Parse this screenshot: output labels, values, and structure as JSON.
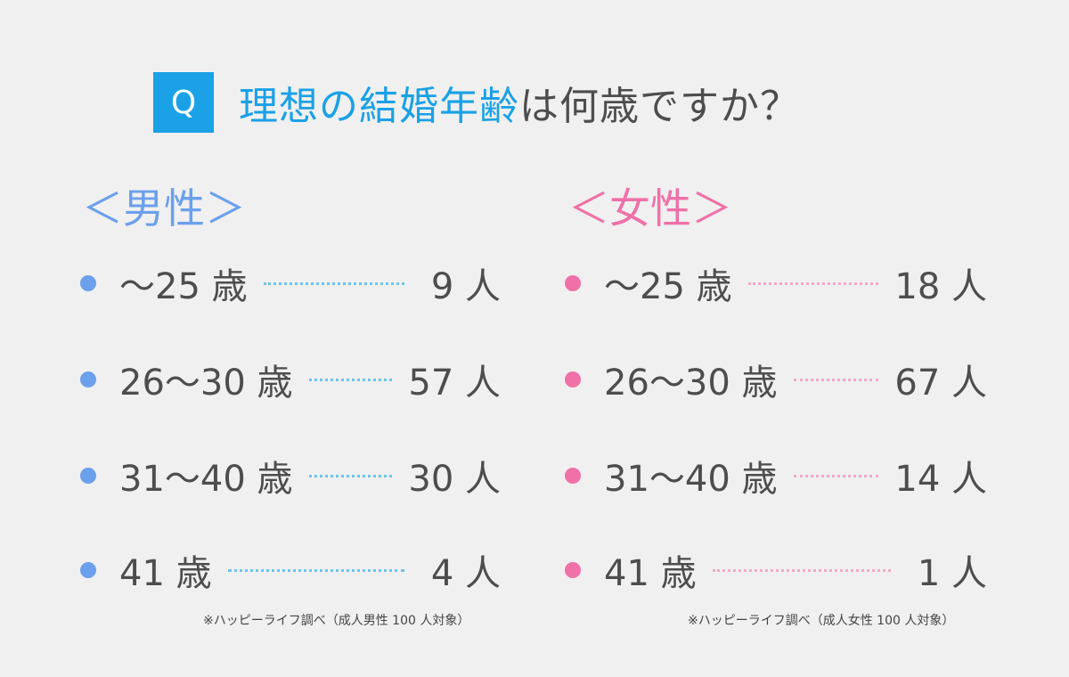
{
  "header": {
    "badge": "Q",
    "title_highlight": "理想の結婚年齢",
    "title_rest": "は何歳ですか？"
  },
  "male": {
    "heading": "＜男性＞",
    "rows": [
      {
        "label": "〜25 歳",
        "count": "9 人"
      },
      {
        "label": "26〜30 歳",
        "count": "57 人"
      },
      {
        "label": "31〜40 歳",
        "count": "30 人"
      },
      {
        "label": "41 歳",
        "count": "4 人"
      }
    ],
    "note": "※ハッピーライフ調べ（成人男性 100 人対象）"
  },
  "female": {
    "heading": "＜女性＞",
    "rows": [
      {
        "label": "〜25 歳",
        "count": "18 人"
      },
      {
        "label": "26〜30 歳",
        "count": "67 人"
      },
      {
        "label": "31〜40 歳",
        "count": "14 人"
      },
      {
        "label": "41 歳",
        "count": "1 人"
      }
    ],
    "note": "※ハッピーライフ調べ（成人女性 100 人対象）"
  },
  "colors": {
    "accent_blue": "#1aa1e6",
    "male_dot": "#6aa0ec",
    "female_dot": "#f070a8",
    "background": "#f0f0f0",
    "text": "#4d4d4d"
  }
}
